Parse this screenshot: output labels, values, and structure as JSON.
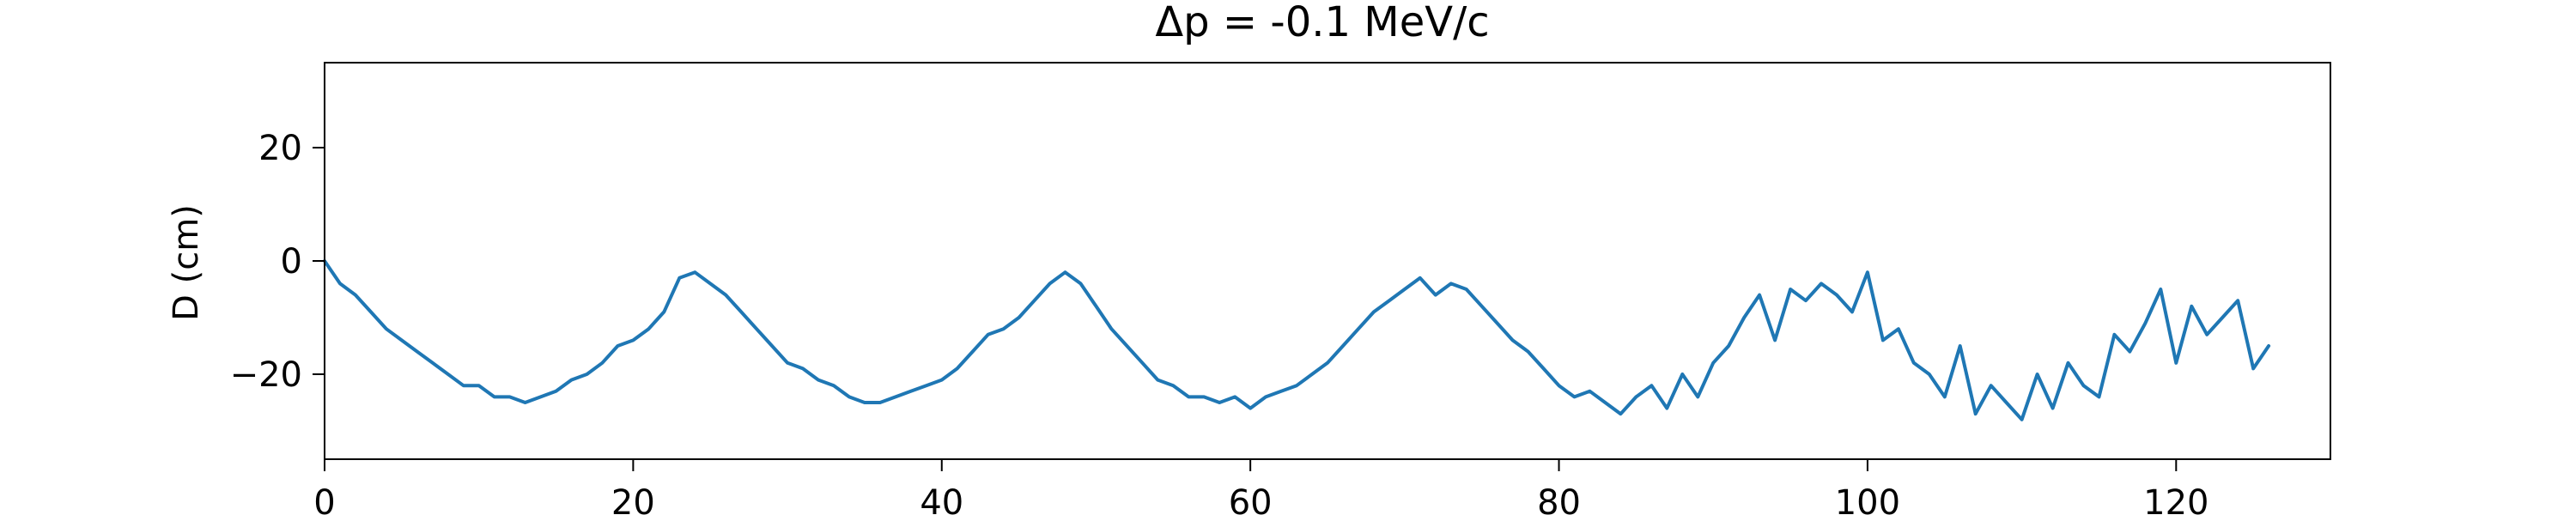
{
  "chart_data": {
    "type": "line",
    "title": "Δp = -0.1 MeV/c",
    "xlabel": "",
    "ylabel": "D (cm)",
    "xlim": [
      0,
      130
    ],
    "ylim": [
      -35,
      35
    ],
    "xticks": [
      0,
      20,
      40,
      60,
      80,
      100,
      120
    ],
    "xtick_labels": [
      "0",
      "20",
      "40",
      "60",
      "80",
      "100",
      "120"
    ],
    "yticks": [
      20,
      0,
      -20
    ],
    "ytick_labels": [
      "20",
      "0",
      "−20"
    ],
    "grid": false,
    "legend": "none",
    "line_color": "#1f77b4",
    "series": [
      {
        "x": [
          0,
          1,
          2,
          3,
          4,
          5,
          6,
          7,
          8,
          9,
          10,
          11,
          12,
          13,
          14,
          15,
          16,
          17,
          18,
          19,
          20,
          21,
          22,
          23,
          24,
          25,
          26,
          27,
          28,
          29,
          30,
          31,
          32,
          33,
          34,
          35,
          36,
          37,
          38,
          39,
          40,
          41,
          42,
          43,
          44,
          45,
          46,
          47,
          48,
          49,
          50,
          51,
          52,
          53,
          54,
          55,
          56,
          57,
          58,
          59,
          60,
          61,
          62,
          63,
          64,
          65,
          66,
          67,
          68,
          69,
          70,
          71,
          72,
          73,
          74,
          75,
          76,
          77,
          78,
          79,
          80,
          81,
          82,
          83,
          84,
          85,
          86,
          87,
          88,
          89,
          90,
          91,
          92,
          93,
          94,
          95,
          96,
          97,
          98,
          99,
          100,
          101,
          102,
          103,
          104,
          105,
          106,
          107,
          108,
          109,
          110,
          111,
          112,
          113,
          114,
          115,
          116,
          117,
          118,
          119,
          120,
          121,
          122,
          123,
          124,
          125,
          126
        ],
        "values": [
          0,
          -4,
          -6,
          -9,
          -12,
          -14,
          -16,
          -18,
          -20,
          -22,
          -22,
          -24,
          -24,
          -25,
          -24,
          -23,
          -21,
          -20,
          -18,
          -15,
          -14,
          -12,
          -9,
          -3,
          -2,
          -4,
          -6,
          -9,
          -12,
          -15,
          -18,
          -19,
          -21,
          -22,
          -24,
          -25,
          -25,
          -24,
          -23,
          -22,
          -21,
          -19,
          -16,
          -13,
          -12,
          -10,
          -7,
          -4,
          -2,
          -4,
          -8,
          -12,
          -15,
          -18,
          -21,
          -22,
          -24,
          -24,
          -25,
          -24,
          -26,
          -24,
          -23,
          -22,
          -20,
          -18,
          -15,
          -12,
          -9,
          -7,
          -5,
          -3,
          -6,
          -4,
          -5,
          -8,
          -11,
          -14,
          -16,
          -19,
          -22,
          -24,
          -23,
          -25,
          -27,
          -24,
          -22,
          -26,
          -20,
          -24,
          -18,
          -15,
          -10,
          -6,
          -14,
          -5,
          -7,
          -4,
          -6,
          -9,
          -2,
          -14,
          -12,
          -18,
          -20,
          -24,
          -15,
          -27,
          -22,
          -25,
          -28,
          -20,
          -26,
          -18,
          -22,
          -24,
          -13,
          -16,
          -11,
          -5,
          -18,
          -8,
          -13,
          -10,
          -7,
          -19,
          -15
        ]
      }
    ]
  }
}
